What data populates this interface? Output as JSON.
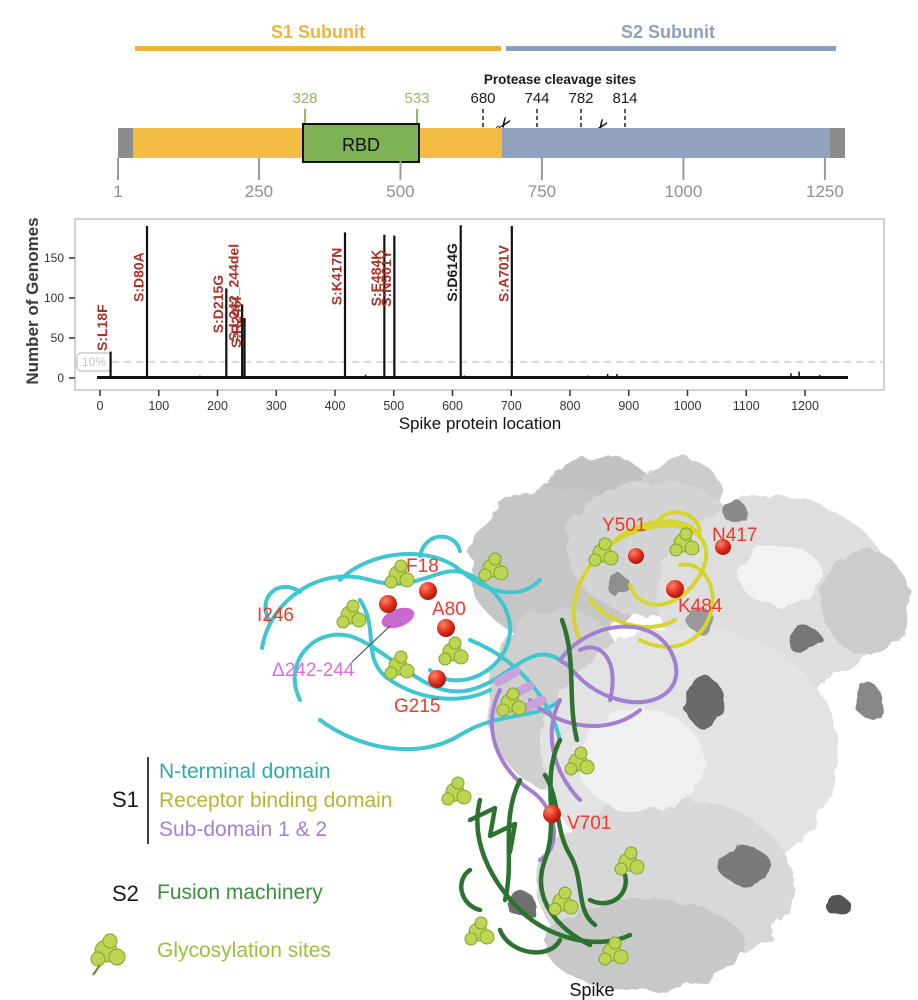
{
  "domain_diagram": {
    "s1_label": "S1 Subunit",
    "s2_label": "S2 Subunit",
    "s1_color": "#EFB43C",
    "s2_color": "#8E9EBC",
    "protease_title": "Protease cleavage sites",
    "cleavage_sites": [
      "680",
      "744",
      "782",
      "814"
    ],
    "rbd": {
      "label": "RBD",
      "start": "328",
      "end": "533",
      "fill": "#7EB254",
      "tick_color": "#8FBA62"
    },
    "axis_ticks": [
      "1",
      "250",
      "500",
      "750",
      "1000",
      "1250"
    ],
    "bar_colors": {
      "cap": "#8c8c8c",
      "s1": "#F2BC45",
      "s2": "#92A2BE"
    },
    "icons": {
      "scissors": "✂"
    }
  },
  "chart_data": {
    "type": "bar",
    "title": "",
    "xlabel": "Spike protein location",
    "ylabel": "Number of Genomes",
    "xlim": [
      0,
      1273
    ],
    "ylim": [
      0,
      195
    ],
    "yticks": [
      0,
      50,
      100,
      150
    ],
    "xticks": [
      0,
      100,
      200,
      300,
      400,
      500,
      600,
      700,
      800,
      900,
      1000,
      1100,
      1200
    ],
    "grid": false,
    "threshold": {
      "value": 20,
      "label": "10%"
    },
    "mutations": [
      {
        "label": "S:L18F",
        "x": 18,
        "y": 33,
        "color": "#A93226"
      },
      {
        "label": "S:D80A",
        "x": 80,
        "y": 190,
        "color": "#A93226"
      },
      {
        "label": "S:D215G",
        "x": 215,
        "y": 112,
        "color": "#A93226"
      },
      {
        "label": "S:L242_244del",
        "x": 242,
        "y": 92,
        "color": "#A93226"
      },
      {
        "label": "S:R246I",
        "x": 246,
        "y": 75,
        "color": "#A93226"
      },
      {
        "label": "S:K417N",
        "x": 417,
        "y": 182,
        "color": "#A93226"
      },
      {
        "label": "S:E484K",
        "x": 484,
        "y": 179,
        "color": "#A93226"
      },
      {
        "label": "S:N501Y",
        "x": 501,
        "y": 178,
        "color": "#A93226"
      },
      {
        "label": "S:D614G",
        "x": 614,
        "y": 191,
        "color": "#1A1A1A"
      },
      {
        "label": "S:A701V",
        "x": 701,
        "y": 190,
        "color": "#A93226"
      }
    ],
    "minor_peaks": [
      {
        "x": 170,
        "y": 3
      },
      {
        "x": 452,
        "y": 4
      },
      {
        "x": 620,
        "y": 3
      },
      {
        "x": 830,
        "y": 3
      },
      {
        "x": 864,
        "y": 5
      },
      {
        "x": 880,
        "y": 5
      },
      {
        "x": 1176,
        "y": 6
      },
      {
        "x": 1190,
        "y": 8
      },
      {
        "x": 1225,
        "y": 4
      }
    ]
  },
  "structure": {
    "label_color": "#EE3A2C",
    "mutation_labels": [
      {
        "text": "Y501"
      },
      {
        "text": "N417"
      },
      {
        "text": "F18"
      },
      {
        "text": "I246"
      },
      {
        "text": "A80"
      },
      {
        "text": "K484"
      },
      {
        "text": "G215"
      },
      {
        "text": "V701"
      }
    ],
    "deletion_label": {
      "text": "Δ242-244",
      "color": "#DA70D6"
    },
    "spike_caption": "Spike"
  },
  "legend": {
    "s1_group": {
      "label": "S1",
      "items": [
        {
          "text": "N-terminal domain",
          "color": "#31A8AE"
        },
        {
          "text": "Receptor binding domain",
          "color": "#B7B431"
        },
        {
          "text": "Sub-domain 1 & 2",
          "color": "#A47FD2"
        }
      ]
    },
    "s2_group": {
      "label": "S2",
      "items": [
        {
          "text": "Fusion machinery",
          "color": "#3E8E41"
        }
      ]
    },
    "glyco": {
      "text": "Glycosylation sites",
      "color": "#9CBE3C"
    }
  }
}
